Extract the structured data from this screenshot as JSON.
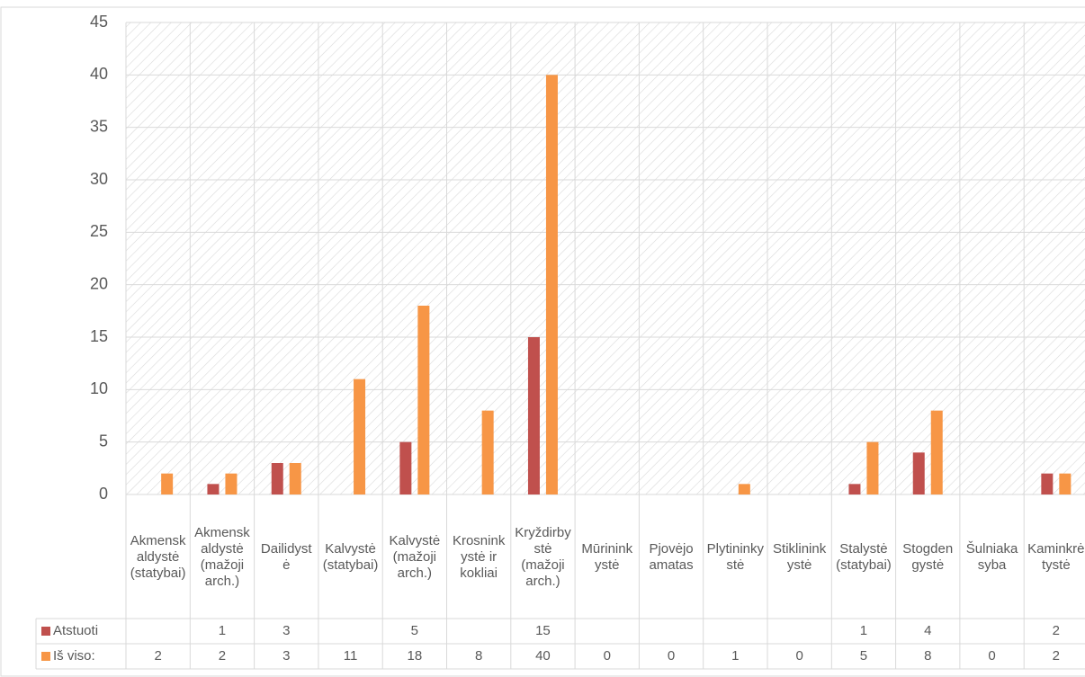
{
  "chart_data": {
    "type": "bar",
    "categories": [
      "Akmenskaldystė (statybai)",
      "Akmenskaldystė (mažoji arch.)",
      "Dailidystė",
      "Kalvystė (statybai)",
      "Kalvystė (mažoji arch.)",
      "Krosninkystė ir kokliai",
      "Kryždirbystė (mažoji arch.)",
      "Mūrininkystė",
      "Pjovėjo amatas",
      "Plytininkystė",
      "Stiklininkystė",
      "Stalystė (statybai)",
      "Stogdengystė",
      "Šulniakasyba",
      "Kaminkrėtystė"
    ],
    "series": [
      {
        "name": "Atstuoti",
        "color": "#c0504d",
        "values": [
          null,
          1,
          3,
          null,
          5,
          null,
          15,
          null,
          null,
          null,
          null,
          1,
          4,
          null,
          2
        ]
      },
      {
        "name": "Iš viso:",
        "color": "#f79646",
        "values": [
          2,
          2,
          3,
          11,
          18,
          8,
          40,
          0,
          0,
          1,
          0,
          5,
          8,
          0,
          2
        ]
      }
    ],
    "ylim": [
      0,
      45
    ],
    "yticks": [
      0,
      5,
      10,
      15,
      20,
      25,
      30,
      35,
      40,
      45
    ],
    "grid": true,
    "data_table": true
  }
}
